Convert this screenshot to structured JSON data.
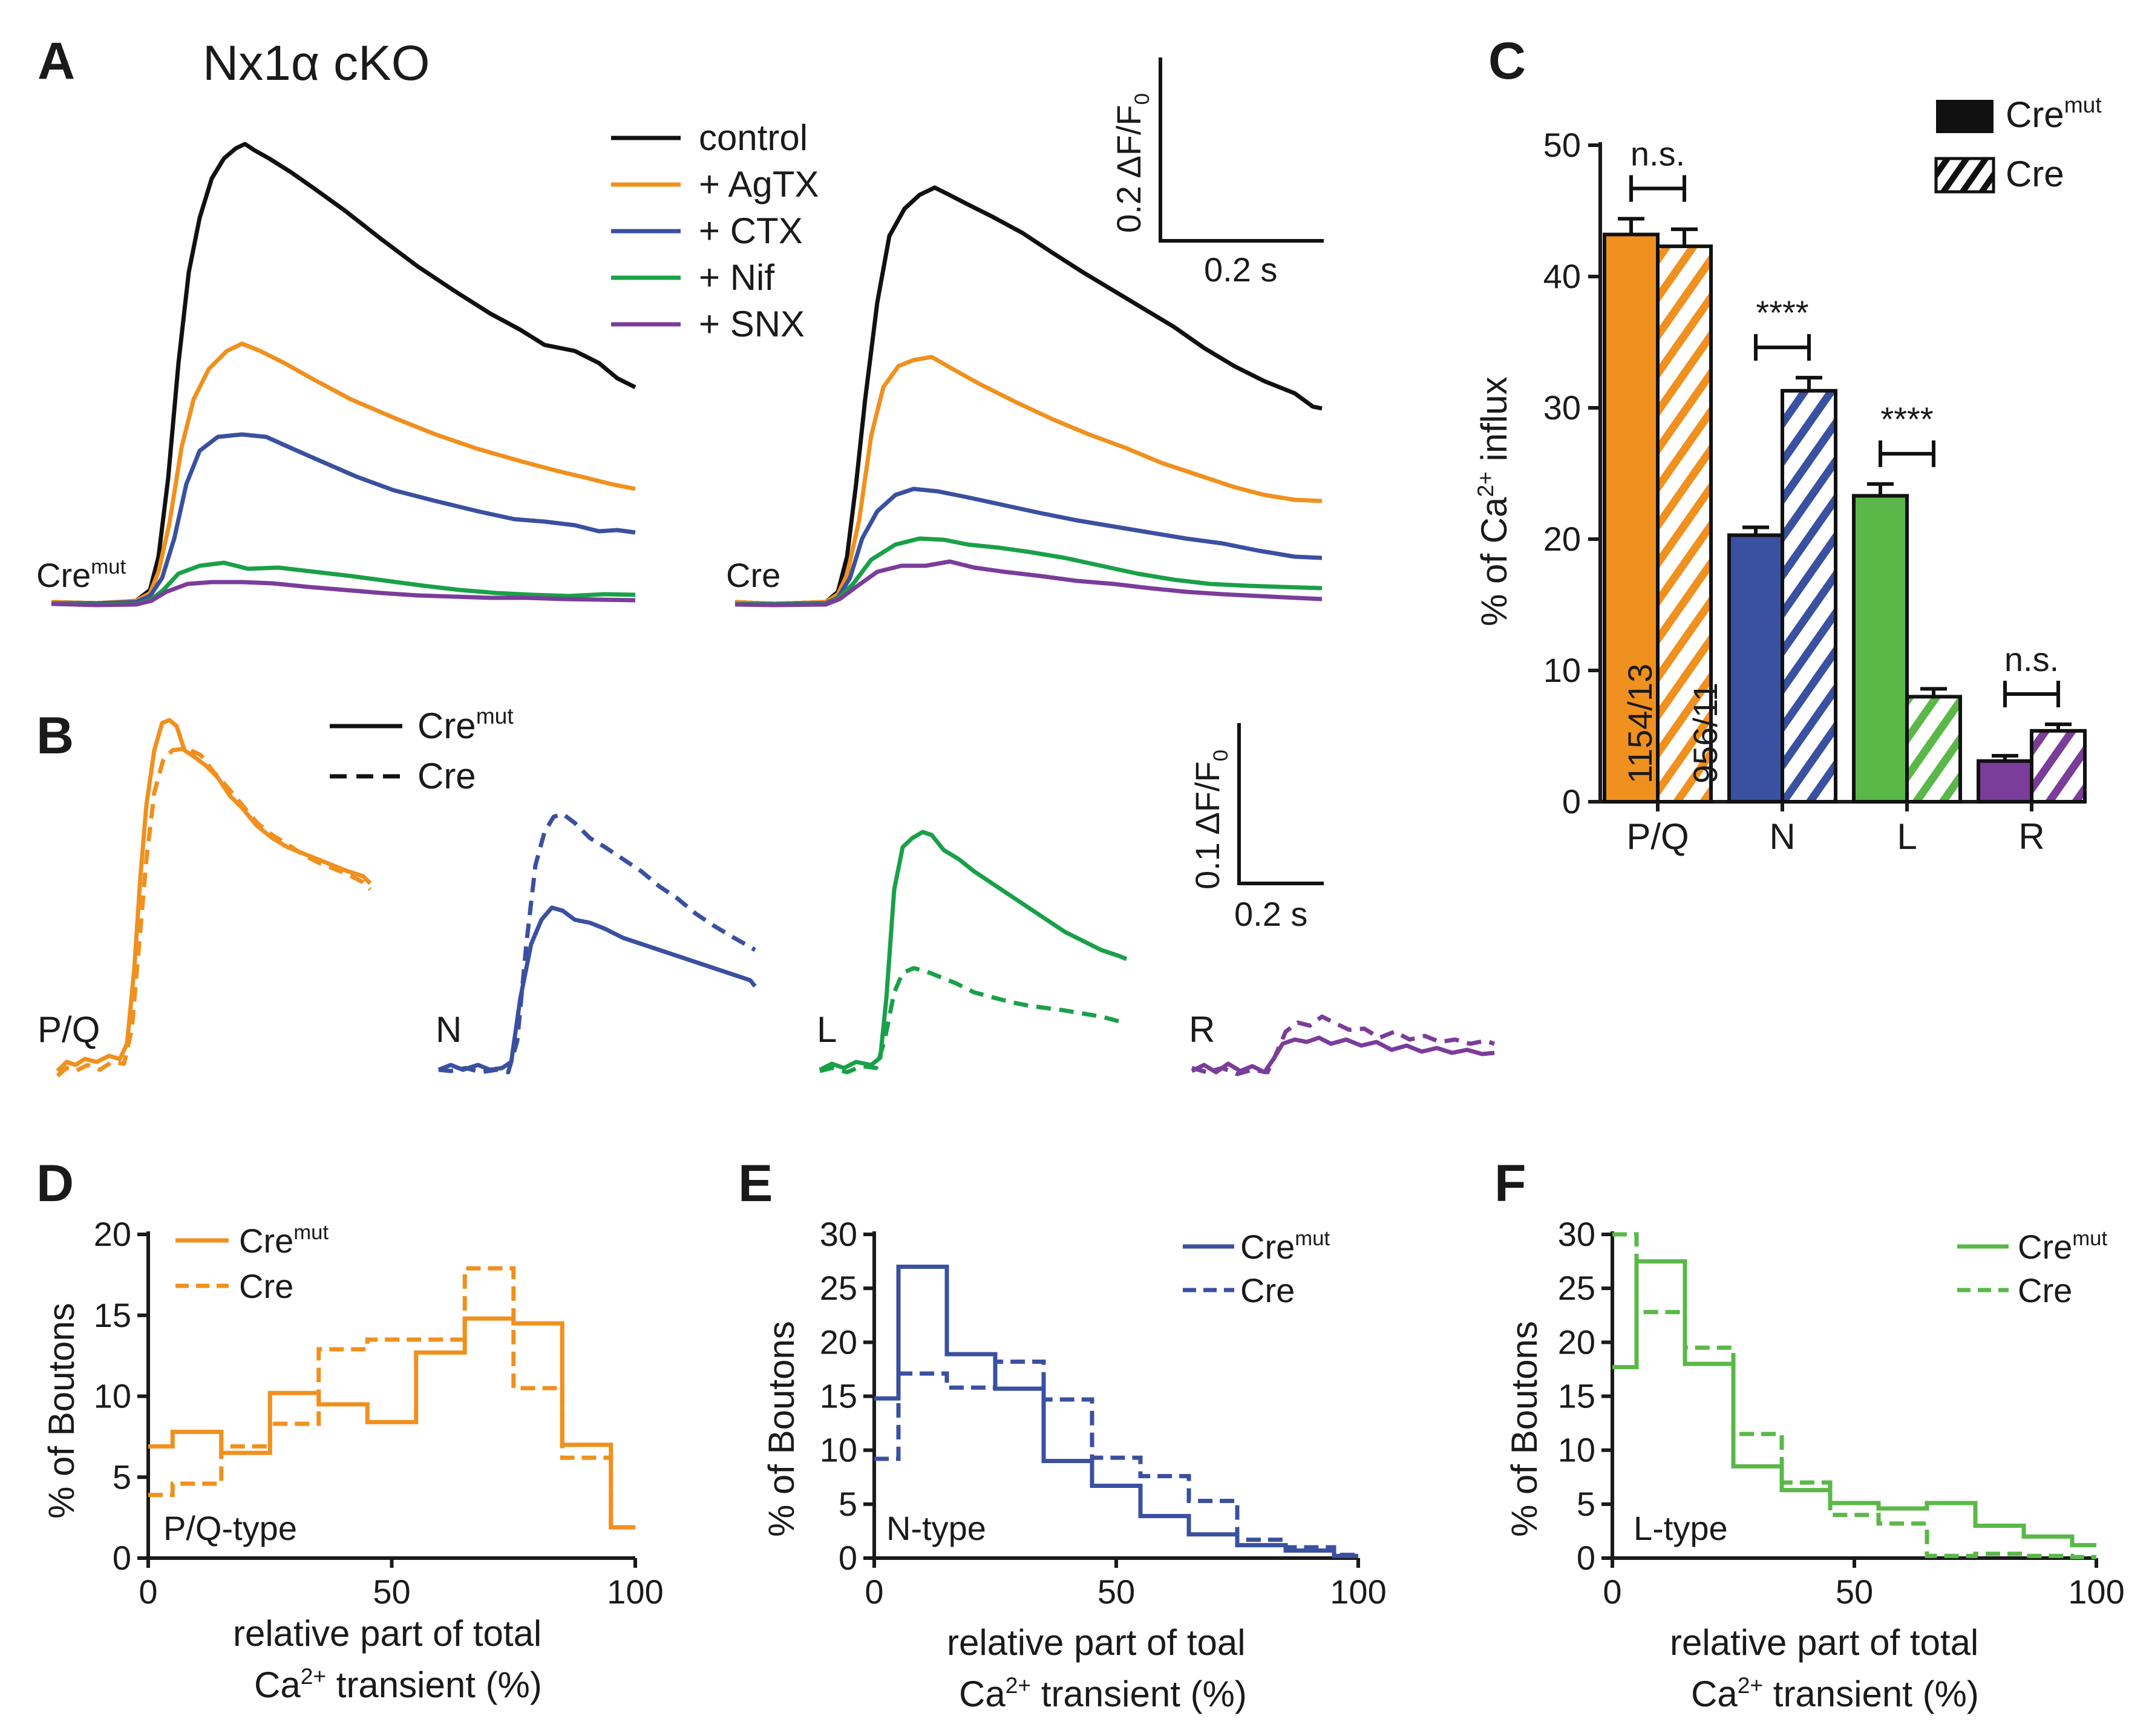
{
  "panel_labels": {
    "A": "A",
    "B": "B",
    "C": "C",
    "D": "D",
    "E": "E",
    "F": "F"
  },
  "colors": {
    "control": "#111111",
    "pq": "#f0901e",
    "n": "#3a50a0",
    "l": "#1aa048",
    "l_bar": "#5ab848",
    "r": "#7a3d9a",
    "axis": "#1a1a1a"
  },
  "panel_a": {
    "title": "Nx1α cKO",
    "legend": [
      "control",
      "+ AgTX",
      "+ CTX",
      "+ Nif",
      "+ SNX"
    ],
    "genotype_left_base": "Cre",
    "genotype_left_sup": "mut",
    "genotype_right": "Cre",
    "scale_y": "0.2 ΔF/F",
    "scale_y_sub": "0",
    "scale_x": "0.2 s"
  },
  "panel_b": {
    "legend_solid_base": "Cre",
    "legend_solid_sup": "mut",
    "legend_dashed": "Cre",
    "trace_labels": [
      "P/Q",
      "N",
      "L",
      "R"
    ],
    "scale_y": "0.1 ΔF/F",
    "scale_y_sub": "0",
    "scale_x": "0.2 s"
  },
  "panel_d": {
    "xlabel_line1": "relative part of total",
    "xlabel_line2_base": "Ca",
    "xlabel_line2_sup": "2+",
    "xlabel_line2_rest": " transient (%)",
    "ylabel": "% of Boutons",
    "type_label": "P/Q-type",
    "legend_solid_base": "Cre",
    "legend_solid_sup": "mut",
    "legend_dashed": "Cre"
  },
  "panel_e": {
    "xlabel_line1": "relative part of toal",
    "xlabel_line2_base": "Ca",
    "xlabel_line2_sup": "2+",
    "xlabel_line2_rest": " transient (%)",
    "ylabel": "% of Boutons",
    "type_label": "N-type",
    "legend_solid_base": "Cre",
    "legend_solid_sup": "mut",
    "legend_dashed": "Cre"
  },
  "panel_f": {
    "xlabel_line1": "relative part of total",
    "xlabel_line2_base": "Ca",
    "xlabel_line2_sup": "2+",
    "xlabel_line2_rest": " transient (%)",
    "ylabel": "% of Boutons",
    "type_label": "L-type",
    "legend_solid_base": "Cre",
    "legend_solid_sup": "mut",
    "legend_dashed": "Cre"
  },
  "panel_c": {
    "ylabel_pre": "% of Ca",
    "ylabel_sup": "2+",
    "ylabel_post": " influx",
    "legend_solid_base": "Cre",
    "legend_solid_sup": "mut",
    "legend_hatched": "Cre",
    "n_cremut": "1154/13",
    "n_cre": "956/11"
  },
  "chart_data": [
    {
      "panel": "C",
      "type": "bar",
      "categories": [
        "P/Q",
        "N",
        "L",
        "R"
      ],
      "ylim": [
        0,
        50
      ],
      "yticks": [
        0,
        10,
        20,
        30,
        40,
        50
      ],
      "ylabel": "% of Ca2+ influx",
      "series": [
        {
          "name": "Cremut",
          "values": [
            43.2,
            20.3,
            23.3,
            3.1
          ],
          "errors": [
            1.2,
            0.6,
            0.9,
            0.4
          ]
        },
        {
          "name": "Cre",
          "values": [
            42.3,
            31.3,
            8.0,
            5.4
          ],
          "errors": [
            1.3,
            1.0,
            0.6,
            0.5
          ]
        }
      ],
      "significance": [
        "n.s.",
        "****",
        "****",
        "n.s."
      ]
    },
    {
      "panel": "D",
      "type": "step",
      "xlim": [
        0,
        100
      ],
      "ylim": [
        0,
        20
      ],
      "xticks": [
        0,
        50,
        100
      ],
      "yticks": [
        0,
        5,
        10,
        15,
        20
      ],
      "edges": [
        0,
        5,
        15,
        25,
        35,
        45,
        55,
        65,
        75,
        85,
        95,
        100
      ],
      "series": [
        {
          "name": "Cremut",
          "style": "solid",
          "values": [
            6.9,
            7.8,
            6.5,
            10.2,
            9.5,
            8.4,
            12.7,
            14.8,
            14.5,
            7.0,
            1.9
          ]
        },
        {
          "name": "Cre",
          "style": "dashed",
          "values": [
            3.9,
            4.6,
            6.9,
            8.3,
            12.9,
            13.5,
            13.5,
            17.9,
            10.5,
            6.2,
            1.9
          ]
        }
      ]
    },
    {
      "panel": "E",
      "type": "step",
      "xlim": [
        0,
        100
      ],
      "ylim": [
        0,
        30
      ],
      "xticks": [
        0,
        50,
        100
      ],
      "yticks": [
        0,
        5,
        10,
        15,
        20,
        25,
        30
      ],
      "edges": [
        0,
        5,
        15,
        25,
        35,
        45,
        55,
        65,
        75,
        85,
        95,
        100
      ],
      "series": [
        {
          "name": "Cremut",
          "style": "solid",
          "values": [
            14.8,
            27.0,
            18.9,
            15.7,
            9.0,
            6.7,
            3.9,
            2.2,
            1.2,
            0.7,
            0.2
          ]
        },
        {
          "name": "Cre",
          "style": "dashed",
          "values": [
            9.2,
            17.1,
            15.8,
            18.2,
            14.7,
            9.3,
            7.6,
            5.3,
            1.7,
            1.0,
            0.3
          ]
        }
      ]
    },
    {
      "panel": "F",
      "type": "step",
      "xlim": [
        0,
        100
      ],
      "ylim": [
        0,
        30
      ],
      "xticks": [
        0,
        50,
        100
      ],
      "yticks": [
        0,
        5,
        10,
        15,
        20,
        25,
        30
      ],
      "edges": [
        0,
        5,
        15,
        25,
        35,
        45,
        55,
        65,
        75,
        85,
        95,
        100
      ],
      "series": [
        {
          "name": "Cremut",
          "style": "solid",
          "values": [
            17.7,
            27.5,
            18.0,
            8.5,
            6.3,
            5.1,
            4.6,
            5.1,
            3.0,
            2.0,
            1.2
          ]
        },
        {
          "name": "Cre",
          "style": "dashed",
          "values": [
            30.0,
            22.8,
            19.5,
            11.5,
            7.0,
            4.0,
            3.2,
            0.2,
            0.4,
            0.2,
            0.1
          ]
        }
      ]
    }
  ]
}
